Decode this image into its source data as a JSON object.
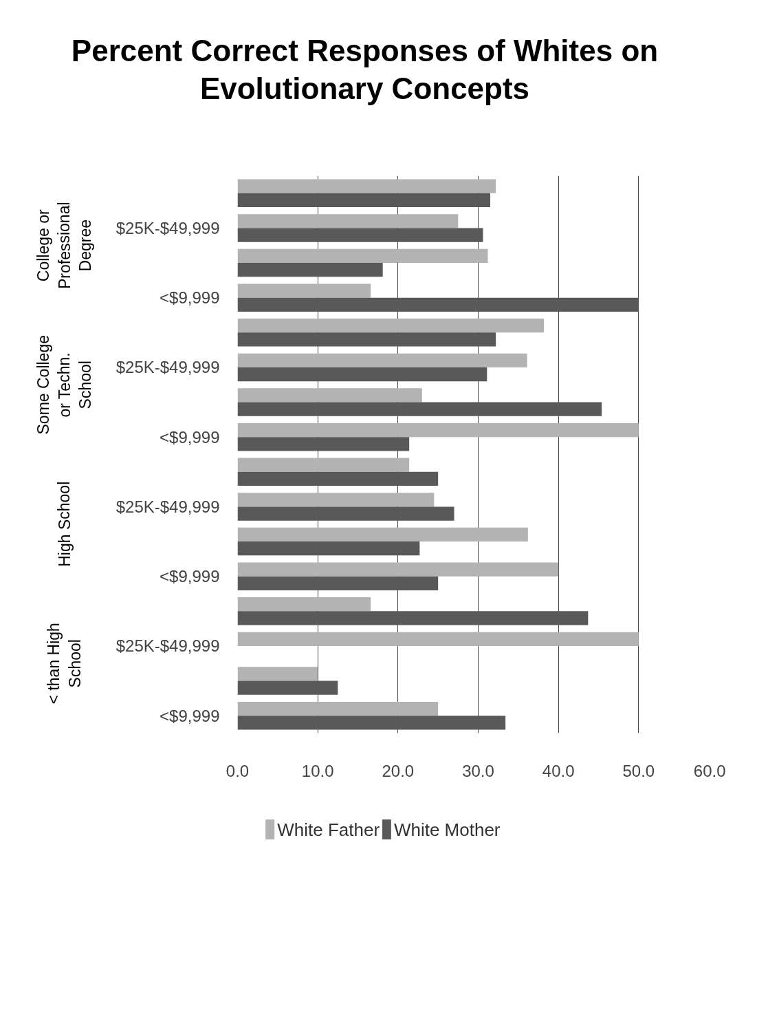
{
  "chart_data": {
    "type": "bar",
    "orientation": "horizontal",
    "title": "Percent Correct Responses of Whites on Evolutionary Concepts",
    "categories": [
      null,
      "$25K-$49,999",
      null,
      "<$9,999",
      null,
      "$25K-$49,999",
      null,
      "<$9,999",
      null,
      "$25K-$49,999",
      null,
      "<$9,999",
      null,
      "$25K-$49,999",
      null,
      "<$9,999"
    ],
    "annotations": [
      "College or Professional Degree",
      "Some College or Techn. School",
      "High School",
      "< than High School"
    ],
    "series": [
      {
        "name": "White Father",
        "color": "#b3b3b3",
        "values": [
          32.2,
          27.5,
          31.2,
          16.6,
          38.2,
          36.1,
          23.0,
          50.0,
          21.4,
          24.5,
          36.2,
          40.0,
          16.6,
          50.0,
          10.0,
          25.0
        ]
      },
      {
        "name": "White Mother",
        "color": "#595959",
        "values": [
          31.5,
          30.6,
          18.1,
          50.0,
          32.2,
          31.1,
          45.4,
          21.4,
          25.0,
          27.0,
          22.7,
          25.0,
          43.7,
          null,
          12.5,
          33.4
        ]
      }
    ],
    "xlim": [
      0,
      60
    ],
    "xticks": [
      {
        "value": 0,
        "label": "0.0"
      },
      {
        "value": 10,
        "label": "10.0"
      },
      {
        "value": 20,
        "label": "20.0"
      },
      {
        "value": 30,
        "label": "30.0"
      },
      {
        "value": 40,
        "label": "40.0"
      },
      {
        "value": 50,
        "label": "50.0"
      },
      {
        "value": 60,
        "label": "60.0"
      }
    ],
    "grid": "x",
    "legend": "bottom"
  }
}
